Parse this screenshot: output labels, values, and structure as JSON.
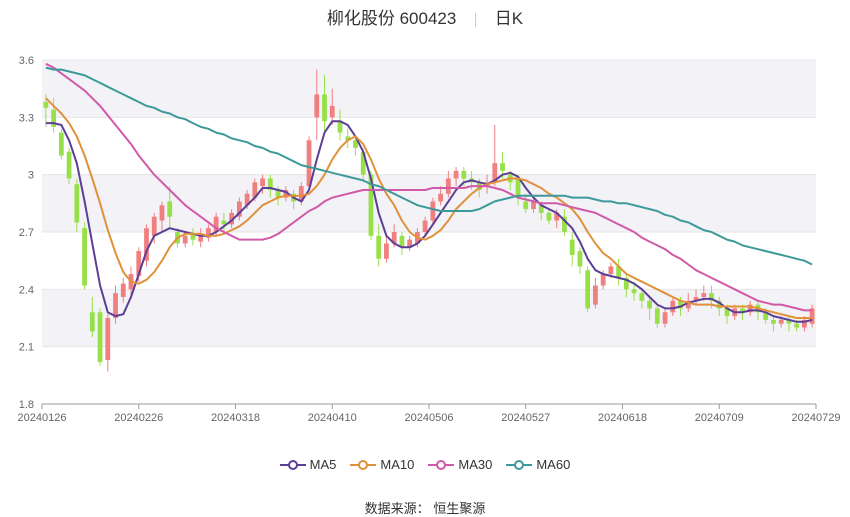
{
  "header": {
    "title": "柳化股份 600423",
    "period": "日K"
  },
  "source": {
    "label": "数据来源：",
    "value": "恒生聚源"
  },
  "colors": {
    "up": "#f08080",
    "down": "#98e04a",
    "band": "#f2f2f7",
    "grid": "#e6e6e6",
    "axis": "#999999"
  },
  "chart_data": {
    "type": "candlestick",
    "ylim": [
      1.8,
      3.6
    ],
    "yticks": [
      "1.8",
      "2.1",
      "2.4",
      "2.7",
      "3",
      "3.3",
      "3.6"
    ],
    "xticks": [
      "20240126",
      "20240226",
      "20240318",
      "20240410",
      "20240506",
      "20240527",
      "20240618",
      "20240709",
      "20240729"
    ],
    "legend": [
      {
        "name": "MA5",
        "color": "#5b3e96"
      },
      {
        "name": "MA10",
        "color": "#e0913a"
      },
      {
        "name": "MA30",
        "color": "#d05aa8"
      },
      {
        "name": "MA60",
        "color": "#3e9a9a"
      }
    ],
    "candles": [
      [
        3.38,
        3.35,
        3.42,
        3.25
      ],
      [
        3.34,
        3.25,
        3.4,
        3.22
      ],
      [
        3.22,
        3.1,
        3.24,
        3.08
      ],
      [
        3.12,
        2.98,
        3.14,
        2.95
      ],
      [
        2.95,
        2.75,
        2.98,
        2.7
      ],
      [
        2.72,
        2.42,
        2.75,
        2.4
      ],
      [
        2.28,
        2.18,
        2.36,
        2.15
      ],
      [
        2.28,
        2.02,
        2.3,
        2.0
      ],
      [
        2.03,
        2.25,
        2.27,
        1.97
      ],
      [
        2.25,
        2.38,
        2.42,
        2.22
      ],
      [
        2.36,
        2.43,
        2.46,
        2.33
      ],
      [
        2.4,
        2.48,
        2.52,
        2.37
      ],
      [
        2.47,
        2.6,
        2.62,
        2.44
      ],
      [
        2.55,
        2.72,
        2.74,
        2.52
      ],
      [
        2.68,
        2.78,
        2.8,
        2.64
      ],
      [
        2.76,
        2.84,
        2.86,
        2.7
      ],
      [
        2.86,
        2.78,
        2.94,
        2.72
      ],
      [
        2.7,
        2.64,
        2.72,
        2.62
      ],
      [
        2.64,
        2.68,
        2.7,
        2.62
      ],
      [
        2.69,
        2.66,
        2.72,
        2.63
      ],
      [
        2.65,
        2.68,
        2.72,
        2.62
      ],
      [
        2.67,
        2.72,
        2.74,
        2.65
      ],
      [
        2.7,
        2.78,
        2.8,
        2.68
      ],
      [
        2.76,
        2.74,
        2.8,
        2.7
      ],
      [
        2.74,
        2.8,
        2.82,
        2.72
      ],
      [
        2.78,
        2.86,
        2.88,
        2.76
      ],
      [
        2.84,
        2.9,
        2.92,
        2.82
      ],
      [
        2.88,
        2.96,
        2.98,
        2.86
      ],
      [
        2.94,
        2.98,
        3.0,
        2.9
      ],
      [
        2.98,
        2.92,
        3.0,
        2.88
      ],
      [
        2.92,
        2.88,
        2.94,
        2.84
      ],
      [
        2.88,
        2.92,
        2.94,
        2.86
      ],
      [
        2.9,
        2.86,
        2.92,
        2.82
      ],
      [
        2.86,
        2.94,
        2.96,
        2.84
      ],
      [
        2.94,
        3.18,
        3.2,
        2.92
      ],
      [
        3.3,
        3.42,
        3.55,
        3.18
      ],
      [
        3.42,
        3.28,
        3.52,
        3.22
      ],
      [
        3.3,
        3.36,
        3.45,
        3.26
      ],
      [
        3.28,
        3.22,
        3.34,
        3.18
      ],
      [
        3.2,
        3.18,
        3.24,
        3.14
      ],
      [
        3.18,
        3.14,
        3.2,
        3.1
      ],
      [
        3.12,
        3.0,
        3.14,
        2.96
      ],
      [
        3.0,
        2.68,
        3.02,
        2.66
      ],
      [
        2.68,
        2.56,
        2.74,
        2.52
      ],
      [
        2.56,
        2.64,
        2.68,
        2.54
      ],
      [
        2.64,
        2.7,
        2.74,
        2.62
      ],
      [
        2.68,
        2.62,
        2.7,
        2.58
      ],
      [
        2.62,
        2.66,
        2.68,
        2.6
      ],
      [
        2.64,
        2.7,
        2.72,
        2.62
      ],
      [
        2.7,
        2.76,
        2.78,
        2.68
      ],
      [
        2.76,
        2.86,
        2.88,
        2.74
      ],
      [
        2.86,
        2.9,
        2.94,
        2.84
      ],
      [
        2.9,
        2.98,
        3.02,
        2.88
      ],
      [
        2.98,
        3.02,
        3.04,
        2.94
      ],
      [
        3.02,
        2.98,
        3.04,
        2.94
      ],
      [
        2.98,
        2.96,
        3.02,
        2.92
      ],
      [
        2.96,
        2.92,
        2.98,
        2.88
      ],
      [
        2.94,
        2.96,
        3.0,
        2.9
      ],
      [
        2.96,
        3.06,
        3.26,
        2.94
      ],
      [
        3.06,
        3.02,
        3.12,
        2.98
      ],
      [
        3.0,
        2.96,
        3.02,
        2.92
      ],
      [
        2.98,
        2.88,
        3.0,
        2.84
      ],
      [
        2.86,
        2.82,
        2.9,
        2.8
      ],
      [
        2.82,
        2.86,
        2.88,
        2.8
      ],
      [
        2.84,
        2.8,
        2.86,
        2.76
      ],
      [
        2.8,
        2.76,
        2.82,
        2.74
      ],
      [
        2.76,
        2.8,
        2.82,
        2.72
      ],
      [
        2.78,
        2.7,
        2.82,
        2.68
      ],
      [
        2.66,
        2.58,
        2.7,
        2.52
      ],
      [
        2.6,
        2.52,
        2.62,
        2.48
      ],
      [
        2.5,
        2.3,
        2.52,
        2.28
      ],
      [
        2.32,
        2.42,
        2.46,
        2.3
      ],
      [
        2.42,
        2.48,
        2.5,
        2.4
      ],
      [
        2.48,
        2.52,
        2.54,
        2.46
      ],
      [
        2.52,
        2.46,
        2.56,
        2.42
      ],
      [
        2.46,
        2.4,
        2.48,
        2.36
      ],
      [
        2.4,
        2.38,
        2.44,
        2.34
      ],
      [
        2.38,
        2.34,
        2.4,
        2.3
      ],
      [
        2.34,
        2.3,
        2.36,
        2.24
      ],
      [
        2.3,
        2.22,
        2.32,
        2.2
      ],
      [
        2.22,
        2.28,
        2.3,
        2.2
      ],
      [
        2.28,
        2.34,
        2.36,
        2.26
      ],
      [
        2.34,
        2.3,
        2.36,
        2.26
      ],
      [
        2.3,
        2.34,
        2.38,
        2.28
      ],
      [
        2.34,
        2.36,
        2.4,
        2.32
      ],
      [
        2.36,
        2.38,
        2.42,
        2.34
      ],
      [
        2.38,
        2.34,
        2.42,
        2.3
      ],
      [
        2.34,
        2.3,
        2.36,
        2.26
      ],
      [
        2.3,
        2.26,
        2.32,
        2.22
      ],
      [
        2.26,
        2.3,
        2.32,
        2.24
      ],
      [
        2.3,
        2.28,
        2.32,
        2.24
      ],
      [
        2.28,
        2.32,
        2.34,
        2.26
      ],
      [
        2.32,
        2.28,
        2.34,
        2.24
      ],
      [
        2.28,
        2.24,
        2.3,
        2.22
      ],
      [
        2.24,
        2.22,
        2.26,
        2.18
      ],
      [
        2.22,
        2.24,
        2.26,
        2.2
      ],
      [
        2.24,
        2.22,
        2.26,
        2.18
      ],
      [
        2.22,
        2.2,
        2.24,
        2.18
      ],
      [
        2.2,
        2.24,
        2.26,
        2.18
      ],
      [
        2.22,
        2.3,
        2.32,
        2.2
      ]
    ],
    "ma5": [
      3.27,
      3.27,
      3.26,
      3.18,
      3.06,
      2.86,
      2.64,
      2.42,
      2.28,
      2.26,
      2.27,
      2.36,
      2.48,
      2.6,
      2.68,
      2.7,
      2.72,
      2.71,
      2.7,
      2.69,
      2.68,
      2.68,
      2.7,
      2.73,
      2.76,
      2.8,
      2.84,
      2.88,
      2.93,
      2.93,
      2.92,
      2.91,
      2.88,
      2.86,
      2.92,
      3.08,
      3.22,
      3.28,
      3.28,
      3.26,
      3.2,
      3.12,
      2.98,
      2.8,
      2.68,
      2.64,
      2.62,
      2.62,
      2.64,
      2.68,
      2.74,
      2.8,
      2.86,
      2.92,
      2.96,
      2.97,
      2.96,
      2.95,
      2.97,
      3.0,
      3.01,
      2.99,
      2.93,
      2.88,
      2.84,
      2.82,
      2.8,
      2.76,
      2.72,
      2.65,
      2.56,
      2.5,
      2.48,
      2.47,
      2.46,
      2.45,
      2.43,
      2.4,
      2.36,
      2.32,
      2.3,
      2.3,
      2.31,
      2.33,
      2.34,
      2.35,
      2.35,
      2.33,
      2.3,
      2.28,
      2.28,
      2.29,
      2.29,
      2.28,
      2.26,
      2.25,
      2.24,
      2.23,
      2.23,
      2.24
    ],
    "ma10": [
      3.4,
      3.36,
      3.32,
      3.27,
      3.2,
      3.1,
      2.98,
      2.85,
      2.71,
      2.59,
      2.49,
      2.44,
      2.43,
      2.45,
      2.49,
      2.55,
      2.62,
      2.67,
      2.69,
      2.69,
      2.69,
      2.68,
      2.68,
      2.69,
      2.71,
      2.73,
      2.76,
      2.8,
      2.84,
      2.86,
      2.88,
      2.89,
      2.89,
      2.89,
      2.9,
      2.94,
      3.0,
      3.08,
      3.14,
      3.18,
      3.2,
      3.16,
      3.08,
      2.98,
      2.9,
      2.84,
      2.76,
      2.7,
      2.67,
      2.66,
      2.68,
      2.71,
      2.76,
      2.82,
      2.86,
      2.9,
      2.93,
      2.95,
      2.96,
      2.97,
      2.98,
      2.98,
      2.97,
      2.95,
      2.93,
      2.9,
      2.88,
      2.85,
      2.82,
      2.77,
      2.7,
      2.64,
      2.59,
      2.56,
      2.52,
      2.48,
      2.46,
      2.44,
      2.42,
      2.4,
      2.38,
      2.36,
      2.34,
      2.33,
      2.32,
      2.32,
      2.32,
      2.31,
      2.31,
      2.31,
      2.31,
      2.31,
      2.3,
      2.29,
      2.28,
      2.27,
      2.26,
      2.25,
      2.25,
      2.25
    ],
    "ma30": [
      3.58,
      3.56,
      3.53,
      3.5,
      3.47,
      3.44,
      3.4,
      3.36,
      3.31,
      3.26,
      3.21,
      3.16,
      3.1,
      3.05,
      3.0,
      2.96,
      2.92,
      2.88,
      2.84,
      2.81,
      2.78,
      2.75,
      2.72,
      2.7,
      2.68,
      2.66,
      2.66,
      2.66,
      2.66,
      2.67,
      2.69,
      2.72,
      2.75,
      2.78,
      2.81,
      2.83,
      2.86,
      2.88,
      2.89,
      2.9,
      2.91,
      2.92,
      2.92,
      2.92,
      2.92,
      2.92,
      2.92,
      2.92,
      2.92,
      2.92,
      2.93,
      2.93,
      2.93,
      2.93,
      2.93,
      2.94,
      2.94,
      2.94,
      2.93,
      2.92,
      2.9,
      2.88,
      2.87,
      2.86,
      2.85,
      2.85,
      2.85,
      2.84,
      2.83,
      2.82,
      2.81,
      2.8,
      2.78,
      2.76,
      2.74,
      2.72,
      2.7,
      2.67,
      2.65,
      2.63,
      2.61,
      2.58,
      2.56,
      2.53,
      2.5,
      2.48,
      2.46,
      2.44,
      2.42,
      2.4,
      2.38,
      2.36,
      2.34,
      2.33,
      2.32,
      2.32,
      2.31,
      2.3,
      2.29,
      2.29
    ],
    "ma60": [
      3.56,
      3.55,
      3.55,
      3.54,
      3.53,
      3.52,
      3.5,
      3.48,
      3.46,
      3.44,
      3.42,
      3.4,
      3.38,
      3.36,
      3.35,
      3.33,
      3.32,
      3.3,
      3.29,
      3.27,
      3.25,
      3.24,
      3.22,
      3.21,
      3.19,
      3.18,
      3.17,
      3.15,
      3.14,
      3.12,
      3.11,
      3.09,
      3.07,
      3.05,
      3.04,
      3.03,
      3.02,
      3.01,
      3.0,
      2.99,
      2.98,
      2.97,
      2.95,
      2.94,
      2.92,
      2.9,
      2.88,
      2.86,
      2.84,
      2.83,
      2.82,
      2.81,
      2.81,
      2.81,
      2.81,
      2.81,
      2.82,
      2.84,
      2.86,
      2.87,
      2.88,
      2.89,
      2.89,
      2.89,
      2.89,
      2.89,
      2.89,
      2.89,
      2.88,
      2.88,
      2.88,
      2.87,
      2.86,
      2.86,
      2.85,
      2.85,
      2.84,
      2.83,
      2.82,
      2.81,
      2.79,
      2.78,
      2.76,
      2.75,
      2.73,
      2.71,
      2.7,
      2.68,
      2.66,
      2.65,
      2.63,
      2.62,
      2.61,
      2.6,
      2.59,
      2.58,
      2.57,
      2.56,
      2.55,
      2.53
    ]
  }
}
